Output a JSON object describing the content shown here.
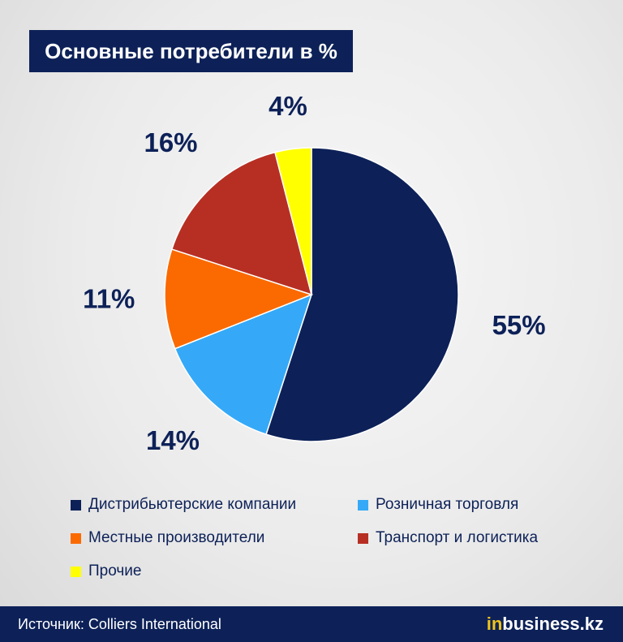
{
  "title": "Основные потребители в %",
  "chart_data": {
    "type": "pie",
    "labels": [
      "Дистрибьютерские компании",
      "Розничная торговля",
      "Местные производители",
      "Транспорт и логистика",
      "Прочие"
    ],
    "values": [
      55,
      14,
      11,
      16,
      4
    ],
    "value_labels": [
      "55%",
      "14%",
      "11%",
      "16%",
      "4%"
    ],
    "colors": [
      "#0d2158",
      "#35a9f7",
      "#fa6a00",
      "#b72f23",
      "#ffff00"
    ],
    "legend_placement": "bottom"
  },
  "legend": [
    {
      "label": "Дистрибьютерские компании",
      "color": "#0d2158"
    },
    {
      "label": "Розничная торговля",
      "color": "#35a9f7"
    },
    {
      "label": "Местные производители",
      "color": "#fa6a00"
    },
    {
      "label": "Транспорт и логистика",
      "color": "#b72f23"
    },
    {
      "label": "Прочие",
      "color": "#ffff00"
    }
  ],
  "footer": {
    "source": "Источник: Colliers International",
    "brand_prefix": "in",
    "brand_rest": "business.kz"
  }
}
